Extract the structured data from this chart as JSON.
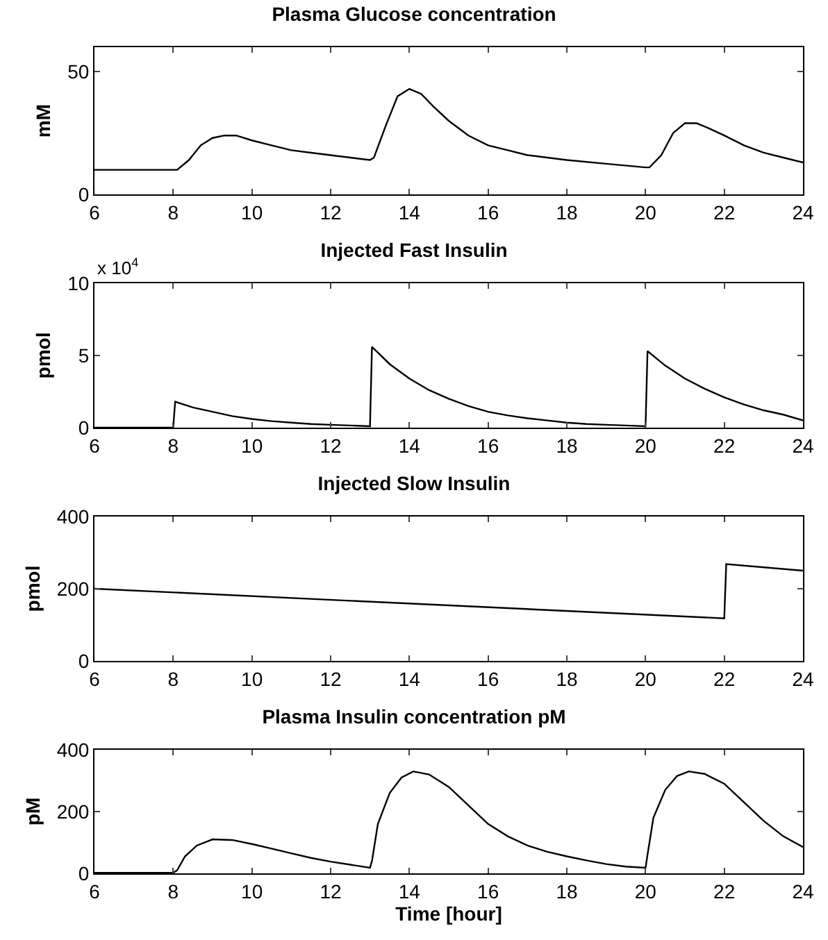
{
  "chart_data": [
    {
      "type": "line",
      "title": "Plasma Glucose concentration",
      "ylabel": "mM",
      "xlim": [
        6,
        24
      ],
      "xticks": [
        6,
        8,
        10,
        12,
        14,
        16,
        18,
        20,
        22,
        24
      ],
      "ylim": [
        0,
        60
      ],
      "yticks": [
        0,
        50
      ],
      "series": [
        {
          "color": "#000000",
          "x": [
            6,
            8,
            8.1,
            8.4,
            8.7,
            9,
            9.3,
            9.6,
            10,
            10.5,
            11,
            11.5,
            12,
            12.5,
            13,
            13.1,
            13.4,
            13.7,
            14,
            14.3,
            14.6,
            15,
            15.5,
            16,
            16.5,
            17,
            18,
            19,
            20,
            20.1,
            20.4,
            20.7,
            21,
            21.3,
            21.6,
            22,
            22.5,
            23,
            23.5,
            24
          ],
          "values": [
            10,
            10,
            10,
            14,
            20,
            23,
            24,
            24,
            22,
            20,
            18,
            17,
            16,
            15,
            14,
            15,
            28,
            40,
            43,
            41,
            36,
            30,
            24,
            20,
            18,
            16,
            14,
            12.5,
            11,
            11,
            16,
            25,
            29,
            29,
            27,
            24,
            20,
            17,
            15,
            13
          ]
        }
      ]
    },
    {
      "type": "line",
      "title": "Injected Fast Insulin",
      "ylabel": "pmol",
      "annotations": [
        "x 10$^{4}$"
      ],
      "xlim": [
        6,
        24
      ],
      "xticks": [
        6,
        8,
        10,
        12,
        14,
        16,
        18,
        20,
        22,
        24
      ],
      "ylim": [
        0,
        10
      ],
      "yticks": [
        0,
        5,
        10
      ],
      "series": [
        {
          "color": "#000000",
          "x": [
            6,
            8,
            8.05,
            8.5,
            9,
            9.5,
            10,
            10.5,
            11,
            11.5,
            12,
            12.5,
            13,
            13.05,
            13.5,
            14,
            14.5,
            15,
            15.5,
            16,
            16.5,
            17,
            17.5,
            18,
            18.5,
            19,
            19.5,
            20,
            20.05,
            20.5,
            21,
            21.5,
            22,
            22.5,
            23,
            23.5,
            24
          ],
          "values": [
            0,
            0,
            1.8,
            1.4,
            1.1,
            0.8,
            0.6,
            0.45,
            0.35,
            0.25,
            0.2,
            0.15,
            0.1,
            5.6,
            4.4,
            3.4,
            2.6,
            2,
            1.5,
            1.1,
            0.85,
            0.65,
            0.5,
            0.35,
            0.25,
            0.2,
            0.15,
            0.1,
            5.3,
            4.3,
            3.4,
            2.7,
            2.1,
            1.6,
            1.2,
            0.9,
            0.5
          ]
        }
      ]
    },
    {
      "type": "line",
      "title": "Injected Slow Insulin",
      "ylabel": "pmol",
      "xlim": [
        6,
        24
      ],
      "xticks": [
        6,
        8,
        10,
        12,
        14,
        16,
        18,
        20,
        22,
        24
      ],
      "ylim": [
        0,
        400
      ],
      "yticks": [
        0,
        200,
        400
      ],
      "series": [
        {
          "color": "#000000",
          "x": [
            6,
            22,
            22.05,
            24
          ],
          "values": [
            200,
            118,
            268,
            250
          ]
        }
      ]
    },
    {
      "type": "line",
      "title": "Plasma Insulin concentration pM",
      "ylabel": "pM",
      "xlabel": "Time [hour]",
      "xlim": [
        6,
        24
      ],
      "xticks": [
        6,
        8,
        10,
        12,
        14,
        16,
        18,
        20,
        22,
        24
      ],
      "ylim": [
        0,
        400
      ],
      "yticks": [
        0,
        200,
        400
      ],
      "series": [
        {
          "color": "#000000",
          "x": [
            6,
            8,
            8.1,
            8.3,
            8.6,
            9,
            9.5,
            10,
            10.5,
            11,
            11.5,
            12,
            12.5,
            13,
            13.05,
            13.2,
            13.5,
            13.8,
            14.1,
            14.5,
            15,
            15.5,
            16,
            16.5,
            17,
            17.5,
            18,
            18.5,
            19,
            19.5,
            20,
            20.05,
            20.2,
            20.5,
            20.8,
            21.1,
            21.5,
            22,
            22.5,
            23,
            23.5,
            24
          ],
          "values": [
            2,
            2,
            10,
            55,
            90,
            110,
            108,
            95,
            80,
            65,
            50,
            38,
            28,
            18,
            40,
            160,
            260,
            310,
            330,
            320,
            280,
            220,
            160,
            120,
            90,
            70,
            55,
            42,
            30,
            22,
            18,
            60,
            180,
            270,
            315,
            330,
            322,
            290,
            230,
            170,
            120,
            85
          ]
        }
      ]
    }
  ]
}
